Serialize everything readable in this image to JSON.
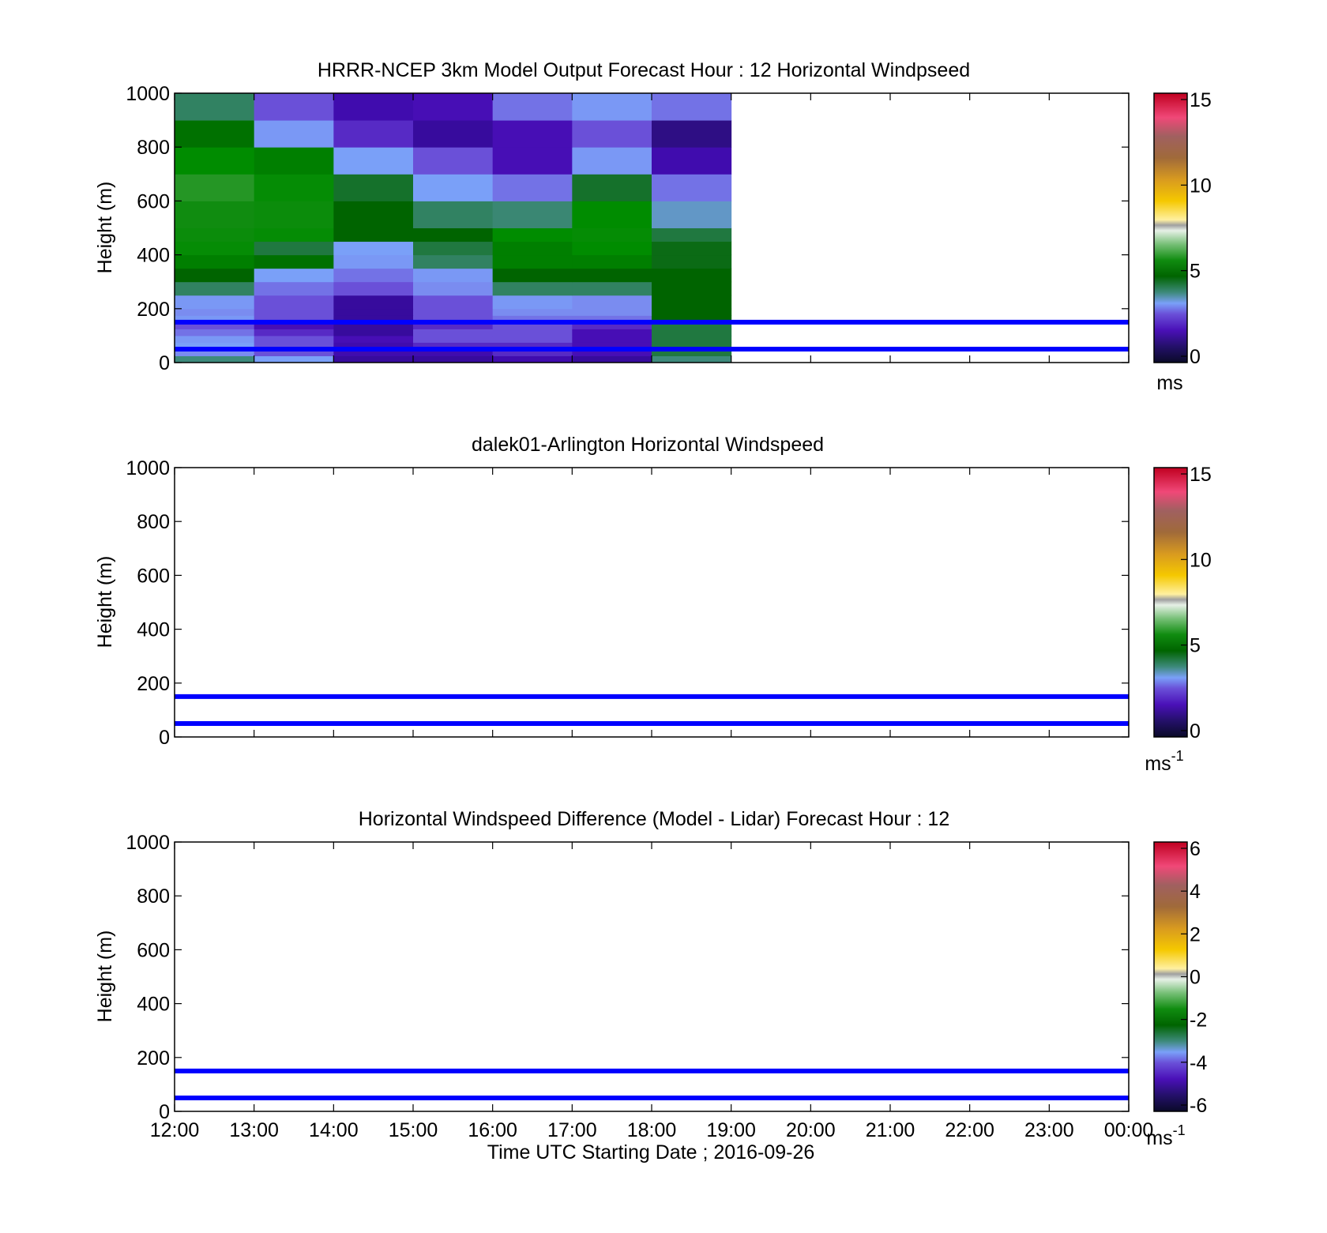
{
  "figure": {
    "xlabel": "Time UTC  Starting Date ; 2016-09-26",
    "xticks": [
      "12:00",
      "13:00",
      "14:00",
      "15:00",
      "16:00",
      "17:00",
      "18:00",
      "19:00",
      "20:00",
      "21:00",
      "22:00",
      "23:00",
      "00:00"
    ],
    "colors": {
      "axis": "#000000",
      "reference_line": "#0000ff",
      "background": "#ffffff"
    }
  },
  "chart_data": [
    {
      "type": "heatmap",
      "title": "HRRR-NCEP 3km Model Output   Forecast Hour : 12 Horizontal Windpseed",
      "xlabel": "",
      "ylabel": "Height (m)",
      "ylim": [
        0,
        1000
      ],
      "yticks": [
        "0",
        "200",
        "400",
        "600",
        "800",
        "1000"
      ],
      "x": [
        "12:00",
        "13:00",
        "14:00",
        "15:00",
        "16:00",
        "17:00",
        "18:00"
      ],
      "y_bins": [
        [
          0,
          25
        ],
        [
          25,
          50
        ],
        [
          50,
          75
        ],
        [
          75,
          100
        ],
        [
          100,
          125
        ],
        [
          125,
          150
        ],
        [
          150,
          175
        ],
        [
          175,
          200
        ],
        [
          200,
          250
        ],
        [
          250,
          300
        ],
        [
          300,
          350
        ],
        [
          350,
          400
        ],
        [
          400,
          450
        ],
        [
          450,
          500
        ],
        [
          500,
          600
        ],
        [
          600,
          700
        ],
        [
          700,
          800
        ],
        [
          800,
          900
        ],
        [
          900,
          1000
        ]
      ],
      "values": [
        [
          3.5,
          3.0,
          0.8,
          0.8,
          1.0,
          0.8,
          3.5
        ],
        [
          2.5,
          1.8,
          1.0,
          1.0,
          1.5,
          1.2,
          4.2
        ],
        [
          3.0,
          1.8,
          1.0,
          1.5,
          1.5,
          1.2,
          4.2
        ],
        [
          2.8,
          1.8,
          1.2,
          1.8,
          1.8,
          1.2,
          4.2
        ],
        [
          2.2,
          1.5,
          0.8,
          1.8,
          1.8,
          1.2,
          4.2
        ],
        [
          1.8,
          1.2,
          0.8,
          1.5,
          1.8,
          1.5,
          4.2
        ],
        [
          2.8,
          1.8,
          0.8,
          1.8,
          2.2,
          2.2,
          4.8
        ],
        [
          2.5,
          1.8,
          0.8,
          1.8,
          2.5,
          2.5,
          4.8
        ],
        [
          2.8,
          1.8,
          0.8,
          1.8,
          2.8,
          2.5,
          4.8
        ],
        [
          3.8,
          2.2,
          1.8,
          2.5,
          3.8,
          3.8,
          4.8
        ],
        [
          4.8,
          3.0,
          2.2,
          2.8,
          4.8,
          4.8,
          4.8
        ],
        [
          5.2,
          5.0,
          2.8,
          3.8,
          5.2,
          5.2,
          4.6
        ],
        [
          5.6,
          4.2,
          3.0,
          4.2,
          5.2,
          5.4,
          4.6
        ],
        [
          5.8,
          5.6,
          4.8,
          4.8,
          5.4,
          5.6,
          4.2
        ],
        [
          6.0,
          5.8,
          4.8,
          3.8,
          3.6,
          5.4,
          3.2
        ],
        [
          6.2,
          5.6,
          4.4,
          3.0,
          2.2,
          4.4,
          2.2
        ],
        [
          5.4,
          5.2,
          3.0,
          1.8,
          1.2,
          2.8,
          1.0
        ],
        [
          5.0,
          2.8,
          1.5,
          0.8,
          1.2,
          1.8,
          0.6
        ],
        [
          3.8,
          1.8,
          1.0,
          1.2,
          2.2,
          2.8,
          2.2
        ]
      ],
      "reference_lines_y": [
        50,
        150
      ],
      "colorbar": {
        "min": 0,
        "max": 15,
        "ticks": [
          "0",
          "5",
          "10",
          "15"
        ],
        "unit": "ms",
        "unit_sup": ""
      }
    },
    {
      "type": "heatmap",
      "title": "dalek01-Arlington  Horizontal Windspeed",
      "xlabel": "",
      "ylabel": "Height (m)",
      "ylim": [
        0,
        1000
      ],
      "yticks": [
        "0",
        "200",
        "400",
        "600",
        "800",
        "1000"
      ],
      "x": [],
      "y_bins": [],
      "values": [],
      "reference_lines_y": [
        50,
        150
      ],
      "colorbar": {
        "min": 0,
        "max": 15,
        "ticks": [
          "0",
          "5",
          "10",
          "15"
        ],
        "unit": "ms",
        "unit_sup": "-1"
      }
    },
    {
      "type": "heatmap",
      "title": "Horizontal Windspeed Difference (Model - Lidar) Forecast Hour : 12",
      "xlabel": "Time UTC  Starting Date ; 2016-09-26",
      "ylabel": "Height (m)",
      "ylim": [
        0,
        1000
      ],
      "yticks": [
        "0",
        "200",
        "400",
        "600",
        "800",
        "1000"
      ],
      "x": [],
      "y_bins": [],
      "values": [],
      "reference_lines_y": [
        50,
        150
      ],
      "colorbar": {
        "min": -6,
        "max": 6,
        "ticks": [
          "-6",
          "-4",
          "-2",
          "0",
          "2",
          "4",
          "6"
        ],
        "unit": "ms",
        "unit_sup": "-1"
      }
    }
  ]
}
